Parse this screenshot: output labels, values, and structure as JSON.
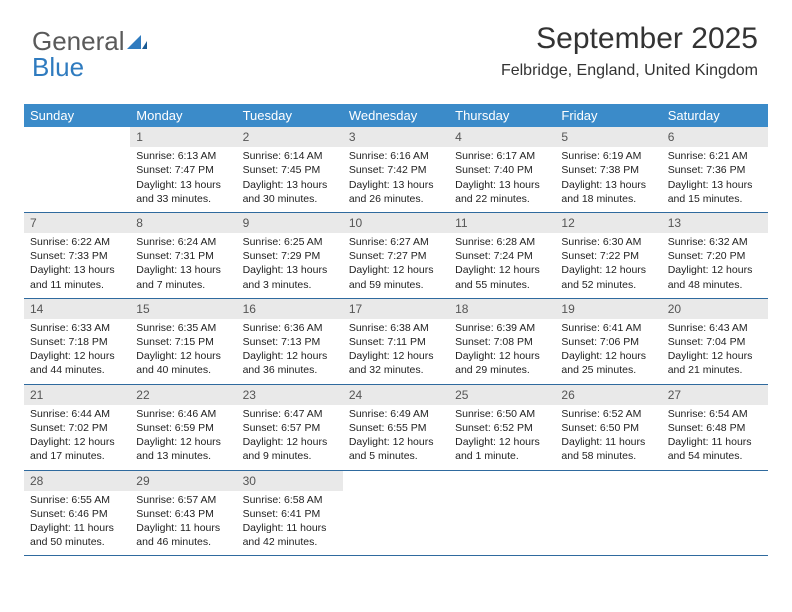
{
  "logo": {
    "word1": "General",
    "word2": "Blue"
  },
  "colors": {
    "header_bg": "#3b8bc9",
    "daynum_bg": "#e9e9e9",
    "row_border": "#2f6a9e",
    "logo_gray": "#5a5a5a",
    "logo_blue": "#2f7bbf",
    "text": "#222222"
  },
  "title": "September 2025",
  "location": "Felbridge, England, United Kingdom",
  "weekdays": [
    "Sunday",
    "Monday",
    "Tuesday",
    "Wednesday",
    "Thursday",
    "Friday",
    "Saturday"
  ],
  "weeks": [
    [
      {
        "blank": true
      },
      {
        "num": "1",
        "sunrise": "Sunrise: 6:13 AM",
        "sunset": "Sunset: 7:47 PM",
        "daylight": "Daylight: 13 hours and 33 minutes."
      },
      {
        "num": "2",
        "sunrise": "Sunrise: 6:14 AM",
        "sunset": "Sunset: 7:45 PM",
        "daylight": "Daylight: 13 hours and 30 minutes."
      },
      {
        "num": "3",
        "sunrise": "Sunrise: 6:16 AM",
        "sunset": "Sunset: 7:42 PM",
        "daylight": "Daylight: 13 hours and 26 minutes."
      },
      {
        "num": "4",
        "sunrise": "Sunrise: 6:17 AM",
        "sunset": "Sunset: 7:40 PM",
        "daylight": "Daylight: 13 hours and 22 minutes."
      },
      {
        "num": "5",
        "sunrise": "Sunrise: 6:19 AM",
        "sunset": "Sunset: 7:38 PM",
        "daylight": "Daylight: 13 hours and 18 minutes."
      },
      {
        "num": "6",
        "sunrise": "Sunrise: 6:21 AM",
        "sunset": "Sunset: 7:36 PM",
        "daylight": "Daylight: 13 hours and 15 minutes."
      }
    ],
    [
      {
        "num": "7",
        "sunrise": "Sunrise: 6:22 AM",
        "sunset": "Sunset: 7:33 PM",
        "daylight": "Daylight: 13 hours and 11 minutes."
      },
      {
        "num": "8",
        "sunrise": "Sunrise: 6:24 AM",
        "sunset": "Sunset: 7:31 PM",
        "daylight": "Daylight: 13 hours and 7 minutes."
      },
      {
        "num": "9",
        "sunrise": "Sunrise: 6:25 AM",
        "sunset": "Sunset: 7:29 PM",
        "daylight": "Daylight: 13 hours and 3 minutes."
      },
      {
        "num": "10",
        "sunrise": "Sunrise: 6:27 AM",
        "sunset": "Sunset: 7:27 PM",
        "daylight": "Daylight: 12 hours and 59 minutes."
      },
      {
        "num": "11",
        "sunrise": "Sunrise: 6:28 AM",
        "sunset": "Sunset: 7:24 PM",
        "daylight": "Daylight: 12 hours and 55 minutes."
      },
      {
        "num": "12",
        "sunrise": "Sunrise: 6:30 AM",
        "sunset": "Sunset: 7:22 PM",
        "daylight": "Daylight: 12 hours and 52 minutes."
      },
      {
        "num": "13",
        "sunrise": "Sunrise: 6:32 AM",
        "sunset": "Sunset: 7:20 PM",
        "daylight": "Daylight: 12 hours and 48 minutes."
      }
    ],
    [
      {
        "num": "14",
        "sunrise": "Sunrise: 6:33 AM",
        "sunset": "Sunset: 7:18 PM",
        "daylight": "Daylight: 12 hours and 44 minutes."
      },
      {
        "num": "15",
        "sunrise": "Sunrise: 6:35 AM",
        "sunset": "Sunset: 7:15 PM",
        "daylight": "Daylight: 12 hours and 40 minutes."
      },
      {
        "num": "16",
        "sunrise": "Sunrise: 6:36 AM",
        "sunset": "Sunset: 7:13 PM",
        "daylight": "Daylight: 12 hours and 36 minutes."
      },
      {
        "num": "17",
        "sunrise": "Sunrise: 6:38 AM",
        "sunset": "Sunset: 7:11 PM",
        "daylight": "Daylight: 12 hours and 32 minutes."
      },
      {
        "num": "18",
        "sunrise": "Sunrise: 6:39 AM",
        "sunset": "Sunset: 7:08 PM",
        "daylight": "Daylight: 12 hours and 29 minutes."
      },
      {
        "num": "19",
        "sunrise": "Sunrise: 6:41 AM",
        "sunset": "Sunset: 7:06 PM",
        "daylight": "Daylight: 12 hours and 25 minutes."
      },
      {
        "num": "20",
        "sunrise": "Sunrise: 6:43 AM",
        "sunset": "Sunset: 7:04 PM",
        "daylight": "Daylight: 12 hours and 21 minutes."
      }
    ],
    [
      {
        "num": "21",
        "sunrise": "Sunrise: 6:44 AM",
        "sunset": "Sunset: 7:02 PM",
        "daylight": "Daylight: 12 hours and 17 minutes."
      },
      {
        "num": "22",
        "sunrise": "Sunrise: 6:46 AM",
        "sunset": "Sunset: 6:59 PM",
        "daylight": "Daylight: 12 hours and 13 minutes."
      },
      {
        "num": "23",
        "sunrise": "Sunrise: 6:47 AM",
        "sunset": "Sunset: 6:57 PM",
        "daylight": "Daylight: 12 hours and 9 minutes."
      },
      {
        "num": "24",
        "sunrise": "Sunrise: 6:49 AM",
        "sunset": "Sunset: 6:55 PM",
        "daylight": "Daylight: 12 hours and 5 minutes."
      },
      {
        "num": "25",
        "sunrise": "Sunrise: 6:50 AM",
        "sunset": "Sunset: 6:52 PM",
        "daylight": "Daylight: 12 hours and 1 minute."
      },
      {
        "num": "26",
        "sunrise": "Sunrise: 6:52 AM",
        "sunset": "Sunset: 6:50 PM",
        "daylight": "Daylight: 11 hours and 58 minutes."
      },
      {
        "num": "27",
        "sunrise": "Sunrise: 6:54 AM",
        "sunset": "Sunset: 6:48 PM",
        "daylight": "Daylight: 11 hours and 54 minutes."
      }
    ],
    [
      {
        "num": "28",
        "sunrise": "Sunrise: 6:55 AM",
        "sunset": "Sunset: 6:46 PM",
        "daylight": "Daylight: 11 hours and 50 minutes."
      },
      {
        "num": "29",
        "sunrise": "Sunrise: 6:57 AM",
        "sunset": "Sunset: 6:43 PM",
        "daylight": "Daylight: 11 hours and 46 minutes."
      },
      {
        "num": "30",
        "sunrise": "Sunrise: 6:58 AM",
        "sunset": "Sunset: 6:41 PM",
        "daylight": "Daylight: 11 hours and 42 minutes."
      },
      {
        "blank": true
      },
      {
        "blank": true
      },
      {
        "blank": true
      },
      {
        "blank": true
      }
    ]
  ]
}
